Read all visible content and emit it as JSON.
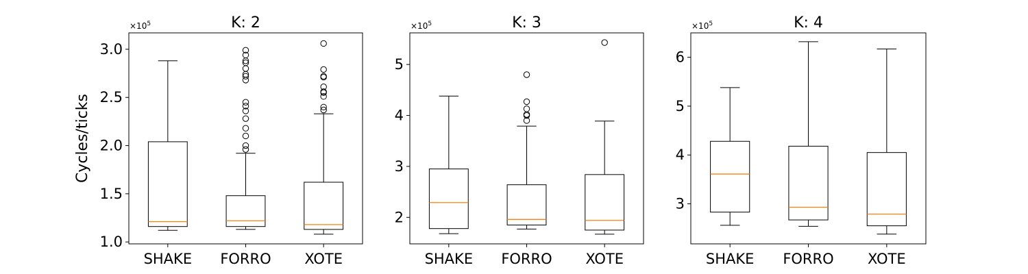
{
  "chart_data": [
    {
      "type": "boxplot",
      "title": "K: 2",
      "ylabel": "Cycles/ticks",
      "multiplier_label": "×10",
      "multiplier_exp": "5",
      "categories": [
        "SHAKE",
        "FORRO",
        "XOTE"
      ],
      "ylim": [
        0.98,
        3.17
      ],
      "yticks": [
        {
          "value": 1.0,
          "label": "1.0"
        },
        {
          "value": 1.5,
          "label": "1.5"
        },
        {
          "value": 2.0,
          "label": "2.0"
        },
        {
          "value": 2.5,
          "label": "2.5"
        },
        {
          "value": 3.0,
          "label": "3.0"
        }
      ],
      "boxes": [
        {
          "whislo": 1.12,
          "q1": 1.16,
          "med": 1.21,
          "q3": 2.04,
          "whishi": 2.88,
          "fliers": []
        },
        {
          "whislo": 1.13,
          "q1": 1.16,
          "med": 1.22,
          "q3": 1.48,
          "whishi": 1.92,
          "fliers": [
            1.96,
            2.0,
            2.1,
            2.18,
            2.28,
            2.36,
            2.41,
            2.45,
            2.68,
            2.72,
            2.74,
            2.8,
            2.86,
            2.88,
            2.94,
            2.99
          ]
        },
        {
          "whislo": 1.08,
          "q1": 1.13,
          "med": 1.18,
          "q3": 1.62,
          "whishi": 2.33,
          "fliers": [
            2.37,
            2.4,
            2.51,
            2.55,
            2.56,
            2.61,
            2.71,
            2.72,
            2.79,
            3.06
          ]
        }
      ],
      "grid": false
    },
    {
      "type": "boxplot",
      "title": "K: 3",
      "ylabel": "",
      "multiplier_label": "×10",
      "multiplier_exp": "5",
      "categories": [
        "SHAKE",
        "FORRO",
        "XOTE"
      ],
      "ylim": [
        1.48,
        5.62
      ],
      "yticks": [
        {
          "value": 2,
          "label": "2"
        },
        {
          "value": 3,
          "label": "3"
        },
        {
          "value": 4,
          "label": "4"
        },
        {
          "value": 5,
          "label": "5"
        }
      ],
      "boxes": [
        {
          "whislo": 1.68,
          "q1": 1.78,
          "med": 2.29,
          "q3": 2.95,
          "whishi": 4.38,
          "fliers": []
        },
        {
          "whislo": 1.77,
          "q1": 1.85,
          "med": 1.96,
          "q3": 2.64,
          "whishi": 3.79,
          "fliers": [
            3.9,
            4.0,
            4.02,
            4.13,
            4.27,
            4.8
          ]
        },
        {
          "whislo": 1.67,
          "q1": 1.75,
          "med": 1.94,
          "q3": 2.84,
          "whishi": 3.89,
          "fliers": [
            5.43
          ]
        }
      ],
      "grid": false
    },
    {
      "type": "boxplot",
      "title": "K: 4",
      "ylabel": "",
      "multiplier_label": "×10",
      "multiplier_exp": "5",
      "categories": [
        "SHAKE",
        "FORRO",
        "XOTE"
      ],
      "ylim": [
        2.18,
        6.5
      ],
      "yticks": [
        {
          "value": 3,
          "label": "3"
        },
        {
          "value": 4,
          "label": "4"
        },
        {
          "value": 5,
          "label": "5"
        },
        {
          "value": 6,
          "label": "6"
        }
      ],
      "boxes": [
        {
          "whislo": 2.56,
          "q1": 2.83,
          "med": 3.61,
          "q3": 4.28,
          "whishi": 5.38,
          "fliers": []
        },
        {
          "whislo": 2.54,
          "q1": 2.67,
          "med": 2.93,
          "q3": 4.18,
          "whishi": 6.32,
          "fliers": []
        },
        {
          "whislo": 2.38,
          "q1": 2.55,
          "med": 2.79,
          "q3": 4.05,
          "whishi": 6.17,
          "fliers": []
        }
      ],
      "grid": false
    }
  ],
  "colors": {
    "box": "#000000",
    "median": "#ff7f0e",
    "flier_edge": "#000000",
    "background": "#ffffff"
  }
}
